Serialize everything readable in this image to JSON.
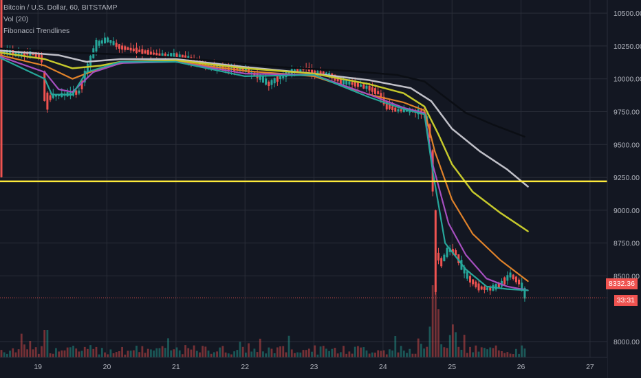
{
  "legend": {
    "symbol": "Bitcoin / U.S. Dollar, 60, BITSTAMP",
    "volume": "Vol (20)",
    "indicator": "Fibonacci Trendlines"
  },
  "price_tag": {
    "price": "8332.36",
    "countdown": "33:31"
  },
  "colors": {
    "background": "#131722",
    "grid": "#2a2e39",
    "up": "#26a69a",
    "down": "#ef5350",
    "hline": "#ffeb3b",
    "axis_text": "#b2b5be"
  },
  "chart_data": {
    "type": "line",
    "y_ticks": [
      "10500.00",
      "10250.00",
      "10000.00",
      "9750.00",
      "9500.00",
      "9250.00",
      "9000.00",
      "8750.00",
      "8500.00",
      "8000.00"
    ],
    "y_tick_values": [
      10500,
      10250,
      10000,
      9750,
      9500,
      9250,
      9000,
      8750,
      8500,
      8000
    ],
    "x_ticks": [
      "19",
      "20",
      "21",
      "22",
      "23",
      "24",
      "25",
      "26",
      "27"
    ],
    "x_tick_values": [
      19,
      20,
      21,
      22,
      23,
      24,
      25,
      26,
      27
    ],
    "x_range": [
      18.45,
      27.25
    ],
    "y_range": [
      7880,
      10600
    ],
    "horizontal_line": 9220,
    "last_price": 8332.36,
    "price_path": [
      [
        18.45,
        10190
      ],
      [
        18.6,
        10210
      ],
      [
        18.7,
        10185
      ],
      [
        18.9,
        10195
      ],
      [
        19.05,
        10170
      ],
      [
        19.12,
        9820
      ],
      [
        19.2,
        9870
      ],
      [
        19.4,
        9880
      ],
      [
        19.6,
        9900
      ],
      [
        19.7,
        10050
      ],
      [
        19.85,
        10260
      ],
      [
        20.0,
        10300
      ],
      [
        20.2,
        10240
      ],
      [
        20.4,
        10220
      ],
      [
        20.6,
        10200
      ],
      [
        20.8,
        10180
      ],
      [
        21.0,
        10180
      ],
      [
        21.2,
        10150
      ],
      [
        21.4,
        10110
      ],
      [
        21.7,
        10080
      ],
      [
        22.0,
        10070
      ],
      [
        22.2,
        10020
      ],
      [
        22.35,
        9960
      ],
      [
        22.5,
        10010
      ],
      [
        22.7,
        10060
      ],
      [
        22.9,
        10080
      ],
      [
        23.0,
        10050
      ],
      [
        23.2,
        10040
      ],
      [
        23.4,
        9980
      ],
      [
        23.6,
        9960
      ],
      [
        23.8,
        9930
      ],
      [
        23.95,
        9890
      ],
      [
        24.05,
        9800
      ],
      [
        24.2,
        9760
      ],
      [
        24.4,
        9760
      ],
      [
        24.6,
        9740
      ],
      [
        24.68,
        9600
      ],
      [
        24.72,
        9300
      ],
      [
        24.75,
        8700
      ],
      [
        24.85,
        8600
      ],
      [
        24.95,
        8700
      ],
      [
        25.05,
        8680
      ],
      [
        25.15,
        8570
      ],
      [
        25.25,
        8480
      ],
      [
        25.4,
        8410
      ],
      [
        25.55,
        8400
      ],
      [
        25.7,
        8430
      ],
      [
        25.85,
        8510
      ],
      [
        26.0,
        8440
      ],
      [
        26.08,
        8332.36
      ]
    ],
    "series": [
      {
        "color": "#131722",
        "stroke": "#0b0e14",
        "width": 2.5,
        "values": [
          [
            18.45,
            10230
          ],
          [
            19.5,
            10200
          ],
          [
            20.5,
            10180
          ],
          [
            21.5,
            10140
          ],
          [
            22.5,
            10090
          ],
          [
            23.5,
            10060
          ],
          [
            24.2,
            10030
          ],
          [
            24.6,
            9980
          ],
          [
            24.85,
            9880
          ],
          [
            25.2,
            9740
          ],
          [
            25.6,
            9650
          ],
          [
            26.05,
            9560
          ]
        ]
      },
      {
        "color": "#c0c0c8",
        "width": 2.5,
        "values": [
          [
            18.45,
            10215
          ],
          [
            19.3,
            10180
          ],
          [
            19.7,
            10130
          ],
          [
            20.2,
            10150
          ],
          [
            21.0,
            10150
          ],
          [
            22.0,
            10090
          ],
          [
            23.0,
            10040
          ],
          [
            23.8,
            9990
          ],
          [
            24.4,
            9930
          ],
          [
            24.7,
            9830
          ],
          [
            25.0,
            9620
          ],
          [
            25.4,
            9450
          ],
          [
            25.8,
            9310
          ],
          [
            26.1,
            9180
          ]
        ]
      },
      {
        "color": "#c6c92c",
        "width": 2.5,
        "values": [
          [
            18.45,
            10200
          ],
          [
            19.1,
            10150
          ],
          [
            19.5,
            10080
          ],
          [
            19.9,
            10100
          ],
          [
            20.2,
            10130
          ],
          [
            21.0,
            10140
          ],
          [
            22.0,
            10080
          ],
          [
            23.0,
            10040
          ],
          [
            23.8,
            9960
          ],
          [
            24.3,
            9890
          ],
          [
            24.6,
            9790
          ],
          [
            24.8,
            9580
          ],
          [
            25.0,
            9350
          ],
          [
            25.3,
            9140
          ],
          [
            25.7,
            8980
          ],
          [
            26.1,
            8840
          ]
        ]
      },
      {
        "color": "#e0822a",
        "width": 2.2,
        "values": [
          [
            18.45,
            10180
          ],
          [
            19.1,
            10100
          ],
          [
            19.5,
            10000
          ],
          [
            19.9,
            10080
          ],
          [
            20.3,
            10130
          ],
          [
            21.0,
            10130
          ],
          [
            22.0,
            10060
          ],
          [
            23.0,
            10020
          ],
          [
            23.8,
            9880
          ],
          [
            24.3,
            9820
          ],
          [
            24.6,
            9760
          ],
          [
            24.75,
            9450
          ],
          [
            25.0,
            9080
          ],
          [
            25.3,
            8820
          ],
          [
            25.7,
            8620
          ],
          [
            26.1,
            8460
          ]
        ]
      },
      {
        "color": "#a64fbf",
        "width": 2.2,
        "values": [
          [
            18.45,
            10170
          ],
          [
            19.1,
            10050
          ],
          [
            19.3,
            9920
          ],
          [
            19.5,
            9900
          ],
          [
            19.8,
            10050
          ],
          [
            20.2,
            10120
          ],
          [
            21.0,
            10130
          ],
          [
            22.0,
            10040
          ],
          [
            23.0,
            10030
          ],
          [
            23.8,
            9880
          ],
          [
            24.3,
            9780
          ],
          [
            24.6,
            9740
          ],
          [
            24.72,
            9350
          ],
          [
            24.95,
            8900
          ],
          [
            25.2,
            8660
          ],
          [
            25.5,
            8480
          ],
          [
            25.8,
            8420
          ],
          [
            26.1,
            8390
          ]
        ]
      },
      {
        "color": "#26a69a",
        "width": 2.2,
        "values": [
          [
            18.45,
            10160
          ],
          [
            19.1,
            10000
          ],
          [
            19.2,
            9880
          ],
          [
            19.5,
            9880
          ],
          [
            19.7,
            10050
          ],
          [
            20.2,
            10130
          ],
          [
            21.0,
            10130
          ],
          [
            22.0,
            10020
          ],
          [
            23.0,
            10030
          ],
          [
            23.8,
            9860
          ],
          [
            24.3,
            9770
          ],
          [
            24.6,
            9730
          ],
          [
            24.72,
            9300
          ],
          [
            24.9,
            8750
          ],
          [
            25.2,
            8550
          ],
          [
            25.5,
            8420
          ],
          [
            25.8,
            8400
          ],
          [
            26.1,
            8390
          ]
        ]
      }
    ]
  }
}
